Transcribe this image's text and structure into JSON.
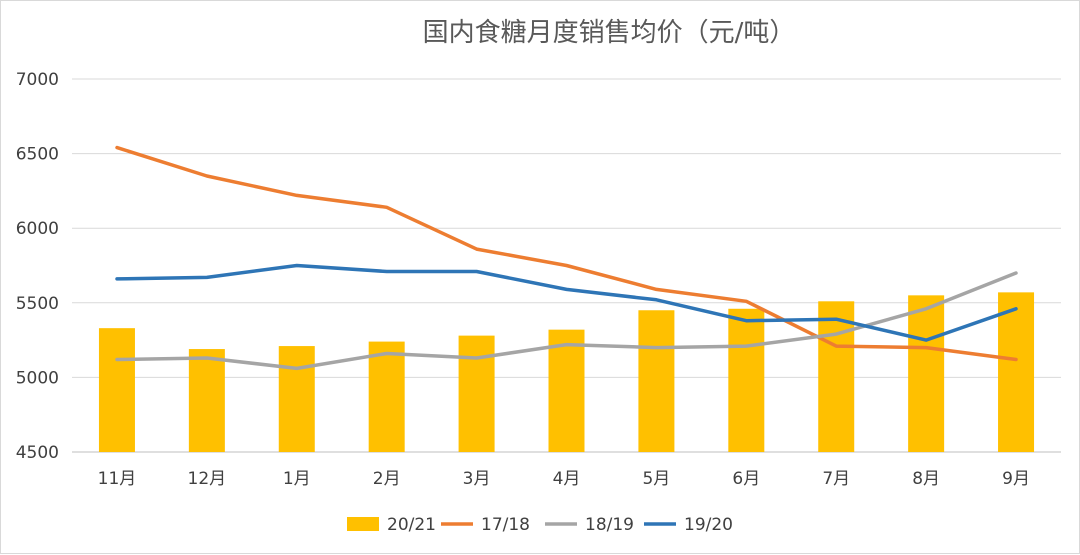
{
  "chart_data": {
    "type": "bar+line",
    "title": "国内食糖月度销售均价（元/吨）",
    "xlabel": "",
    "ylabel": "",
    "ylim": [
      4500,
      7000
    ],
    "yticks": [
      "7000",
      "6500",
      "6000",
      "5500",
      "5000",
      "4500"
    ],
    "ytick_values": [
      7000,
      6500,
      6000,
      5500,
      5000,
      4500
    ],
    "grid": true,
    "legend_position": "bottom",
    "categories": [
      "11月",
      "12月",
      "1月",
      "2月",
      "3月",
      "4月",
      "5月",
      "6月",
      "7月",
      "8月",
      "9月"
    ],
    "series": [
      {
        "name": "20/21",
        "kind": "bar",
        "color": "#ffc000",
        "values": [
          5330,
          5190,
          5210,
          5240,
          5280,
          5320,
          5450,
          5460,
          5510,
          5550,
          5570
        ]
      },
      {
        "name": "17/18",
        "kind": "line",
        "color": "#ed7d31",
        "values": [
          6540,
          6350,
          6220,
          6140,
          5860,
          5750,
          5590,
          5510,
          5210,
          5200,
          5120
        ]
      },
      {
        "name": "18/19",
        "kind": "line",
        "color": "#a5a5a5",
        "values": [
          5120,
          5130,
          5060,
          5160,
          5130,
          5220,
          5200,
          5210,
          5290,
          5460,
          5700
        ]
      },
      {
        "name": "19/20",
        "kind": "line",
        "color": "#2e75b6",
        "values": [
          5660,
          5670,
          5750,
          5710,
          5710,
          5590,
          5520,
          5380,
          5390,
          5250,
          5460
        ]
      }
    ]
  }
}
